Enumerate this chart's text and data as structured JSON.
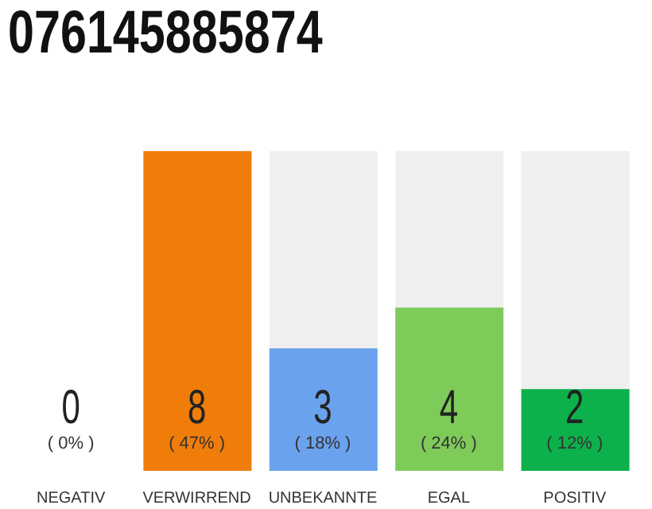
{
  "chart_data": {
    "type": "bar",
    "title": "076145885874",
    "categories": [
      "NEGATIV",
      "VERWIRREND",
      "UNBEKANNTE",
      "EGAL",
      "POSITIV"
    ],
    "values": [
      0,
      47,
      18,
      24,
      12
    ],
    "colors": [
      "#555555",
      "#f07d0a",
      "#6ba2ed",
      "#7ecb5a",
      "#0db14b"
    ],
    "value_labels": [
      "( 0% )",
      "( 47% )",
      "( 18% )",
      "( 24% )",
      "( 12% )"
    ],
    "annotations": [
      "0",
      "8",
      "3",
      "4",
      "2"
    ]
  }
}
